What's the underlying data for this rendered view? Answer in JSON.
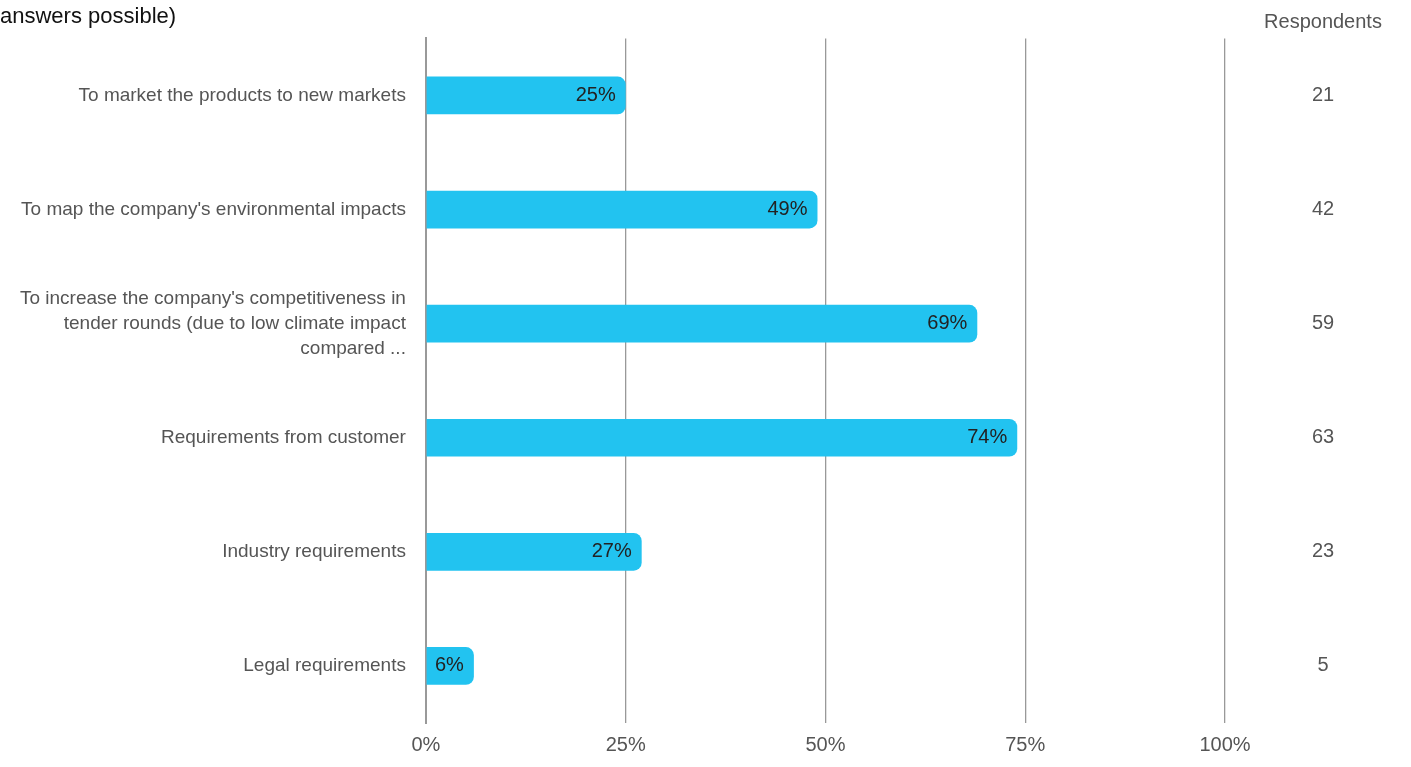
{
  "chart_data": {
    "type": "bar",
    "orientation": "horizontal",
    "title": "answers possible)",
    "categories": [
      "To market the products to new markets",
      "To map the company's environmental impacts",
      "To increase the company's competitiveness in tender rounds (due to low climate impact compared ...",
      "Requirements from customer",
      "Industry requirements",
      "Legal requirements"
    ],
    "values": [
      25,
      49,
      69,
      74,
      27,
      6
    ],
    "color": "#22c3f0",
    "value_labels": [
      "25%",
      "49%",
      "69%",
      "74%",
      "27%",
      "6%"
    ],
    "xlim": [
      0,
      100
    ],
    "xticks": [
      {
        "value": 0,
        "label": "0%"
      },
      {
        "value": 25,
        "label": "25%"
      },
      {
        "value": 50,
        "label": "50%"
      },
      {
        "value": 75,
        "label": "75%"
      },
      {
        "value": 100,
        "label": "100%"
      }
    ],
    "grid": "x",
    "legend": false,
    "annotations": [
      "Respondents",
      "21",
      "42",
      "59",
      "63",
      "23",
      "5"
    ]
  }
}
